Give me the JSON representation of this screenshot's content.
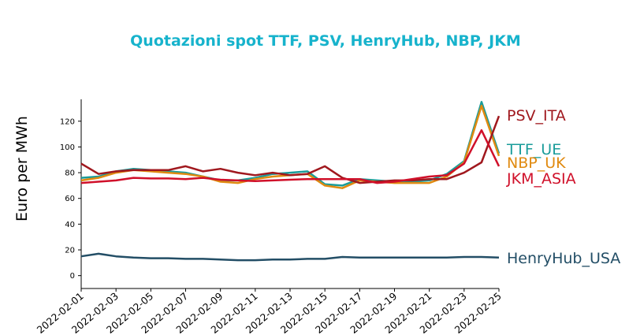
{
  "chart_data": {
    "type": "line",
    "title": "Quotazioni spot TTF, PSV, HenryHub, NBP, JKM",
    "ylabel": "Euro per MWh",
    "xlabel": "",
    "ylim": [
      -10,
      137
    ],
    "yticks": [
      0,
      20,
      40,
      60,
      80,
      100,
      120
    ],
    "x": [
      "2022-02-01",
      "2022-02-02",
      "2022-02-03",
      "2022-02-04",
      "2022-02-05",
      "2022-02-06",
      "2022-02-07",
      "2022-02-08",
      "2022-02-09",
      "2022-02-10",
      "2022-02-11",
      "2022-02-12",
      "2022-02-13",
      "2022-02-14",
      "2022-02-15",
      "2022-02-16",
      "2022-02-17",
      "2022-02-18",
      "2022-02-19",
      "2022-02-20",
      "2022-02-21",
      "2022-02-22",
      "2022-02-23",
      "2022-02-24",
      "2022-02-25"
    ],
    "xtick_labels": [
      "2022-02-01",
      "2022-02-03",
      "2022-02-05",
      "2022-02-07",
      "2022-02-09",
      "2022-02-11",
      "2022-02-13",
      "2022-02-15",
      "2022-02-17",
      "2022-02-19",
      "2022-02-21",
      "2022-02-23",
      "2022-02-25"
    ],
    "grid": false,
    "legend": "inline-right",
    "series": [
      {
        "name": "TTF_UE",
        "color": "#1a9c9a",
        "values": [
          76,
          77,
          81,
          83,
          82,
          81,
          80,
          77,
          74,
          74,
          76,
          79,
          80,
          81,
          71,
          70,
          75,
          74,
          73,
          73,
          74,
          79,
          89,
          135,
          95
        ]
      },
      {
        "name": "NBP_UK",
        "color": "#e08a10",
        "values": [
          74,
          76,
          80,
          82,
          81,
          80,
          79,
          77,
          73,
          72,
          75,
          77,
          78,
          79,
          70,
          68,
          74,
          73,
          72,
          72,
          72,
          77,
          88,
          132,
          93
        ]
      },
      {
        "name": "PSV_ITA",
        "color": "#a0181e",
        "values": [
          87,
          79,
          81,
          82,
          82,
          82,
          85,
          81,
          83,
          80,
          78,
          80,
          78,
          79,
          85,
          76,
          72,
          73,
          74,
          74,
          75,
          75,
          80,
          88,
          124
        ]
      },
      {
        "name": "JKM_ASIA",
        "color": "#d0102a",
        "values": [
          72,
          73,
          74,
          76,
          75.5,
          75.5,
          75,
          76,
          74.5,
          74,
          73.5,
          74,
          74.5,
          75,
          75,
          75,
          75,
          72,
          73,
          75,
          77,
          78,
          87,
          113,
          85
        ]
      },
      {
        "name": "HenryHub_USA",
        "color": "#234e66",
        "values": [
          15,
          17,
          15,
          14,
          13.5,
          13.5,
          13,
          13,
          12.5,
          12,
          12,
          12.5,
          12.5,
          13,
          13,
          14.5,
          14,
          14,
          14,
          14,
          14,
          14,
          14.5,
          14.5,
          14
        ]
      }
    ]
  }
}
